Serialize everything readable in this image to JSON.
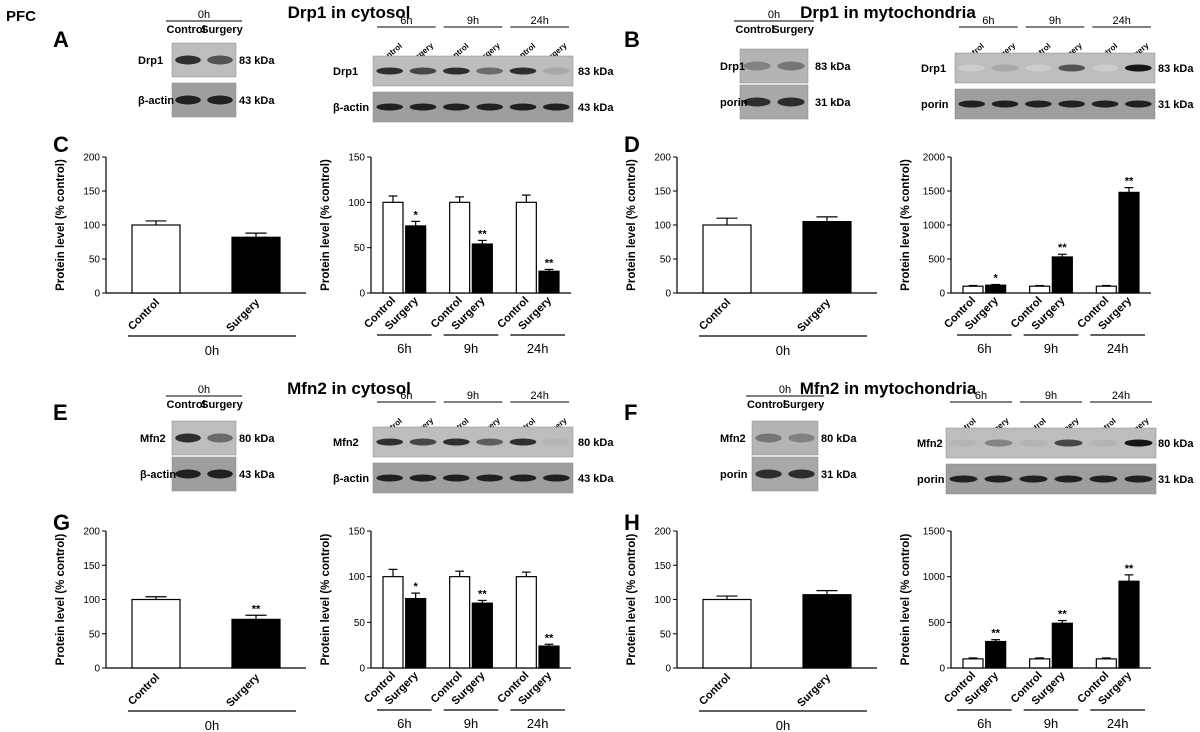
{
  "figure": {
    "corner_label": "PFC",
    "section_titles": [
      "Drp1 in cytosol",
      "Drp1 in mytochondria",
      "Mfn2 in cytosol",
      "Mfn2 in mytochondria"
    ],
    "blot_lane_labels": [
      "Control",
      "Surgery"
    ],
    "time_labels": [
      "0h",
      "6h",
      "9h",
      "24h"
    ]
  },
  "blots": [
    {
      "panel": "A",
      "side": "single",
      "protein": "Drp1",
      "protein_kda": "83 kDa",
      "loading": "β-actin",
      "loading_kda": "43 kDa",
      "time": "0h",
      "tone": "light"
    },
    {
      "panel": "A",
      "side": "time",
      "protein": "Drp1",
      "protein_kda": "83 kDa",
      "loading": "β-actin",
      "loading_kda": "43 kDa",
      "times": [
        "6h",
        "9h",
        "24h"
      ],
      "tone": "light"
    },
    {
      "panel": "B",
      "side": "single",
      "protein": "Drp1",
      "protein_kda": "83 kDa",
      "loading": "porin",
      "loading_kda": "31 kDa",
      "time": "0h",
      "tone": "light"
    },
    {
      "panel": "B",
      "side": "time",
      "protein": "Drp1",
      "protein_kda": "83 kDa",
      "loading": "porin",
      "loading_kda": "31 kDa",
      "times": [
        "6h",
        "9h",
        "24h"
      ],
      "tone": "light"
    },
    {
      "panel": "E",
      "side": "single",
      "protein": "Mfn2",
      "protein_kda": "80 kDa",
      "loading": "β-actin",
      "loading_kda": "43 kDa",
      "time": "0h",
      "tone": "light"
    },
    {
      "panel": "E",
      "side": "time",
      "protein": "Mfn2",
      "protein_kda": "80 kDa",
      "loading": "β-actin",
      "loading_kda": "43 kDa",
      "times": [
        "6h",
        "9h",
        "24h"
      ],
      "tone": "light"
    },
    {
      "panel": "F",
      "side": "single",
      "protein": "Mfn2",
      "protein_kda": "80 kDa",
      "loading": "porin",
      "loading_kda": "31 kDa",
      "time": "0h",
      "tone": "light"
    },
    {
      "panel": "F",
      "side": "time",
      "protein": "Mfn2",
      "protein_kda": "80 kDa",
      "loading": "porin",
      "loading_kda": "31 kDa",
      "times": [
        "6h",
        "9h",
        "24h"
      ],
      "tone": "light"
    }
  ],
  "chart_data": [
    {
      "panel": "C",
      "type": "bar",
      "ylabel": "Protein level (% control)",
      "ylim": [
        0,
        200
      ],
      "yticks": [
        0,
        50,
        100,
        150,
        200
      ],
      "groups": [
        {
          "label": "0h",
          "bars": [
            {
              "name": "Control",
              "value": 100,
              "err": 6,
              "sig": ""
            },
            {
              "name": "Surgery",
              "value": 82,
              "err": 6,
              "sig": ""
            }
          ]
        }
      ]
    },
    {
      "panel": "C",
      "type": "bar",
      "ylabel": "Protein level (% control)",
      "ylim": [
        0,
        150
      ],
      "yticks": [
        0,
        50,
        100,
        150
      ],
      "groups": [
        {
          "label": "6h",
          "bars": [
            {
              "name": "Control",
              "value": 100,
              "err": 7,
              "sig": ""
            },
            {
              "name": "Surgery",
              "value": 74,
              "err": 5,
              "sig": "*"
            }
          ]
        },
        {
          "label": "9h",
          "bars": [
            {
              "name": "Control",
              "value": 100,
              "err": 6,
              "sig": ""
            },
            {
              "name": "Surgery",
              "value": 54,
              "err": 4,
              "sig": "**"
            }
          ]
        },
        {
          "label": "24h",
          "bars": [
            {
              "name": "Control",
              "value": 100,
              "err": 8,
              "sig": ""
            },
            {
              "name": "Surgery",
              "value": 24,
              "err": 2,
              "sig": "**"
            }
          ]
        }
      ]
    },
    {
      "panel": "D",
      "type": "bar",
      "ylabel": "Protein level (% control)",
      "ylim": [
        0,
        200
      ],
      "yticks": [
        0,
        50,
        100,
        150,
        200
      ],
      "groups": [
        {
          "label": "0h",
          "bars": [
            {
              "name": "Control",
              "value": 100,
              "err": 10,
              "sig": ""
            },
            {
              "name": "Surgery",
              "value": 105,
              "err": 7,
              "sig": ""
            }
          ]
        }
      ]
    },
    {
      "panel": "D",
      "type": "bar",
      "ylabel": "Protein level (% control)",
      "ylim": [
        0,
        2000
      ],
      "yticks": [
        0,
        500,
        1000,
        1500,
        2000
      ],
      "groups": [
        {
          "label": "6h",
          "bars": [
            {
              "name": "Control",
              "value": 100,
              "err": 10,
              "sig": ""
            },
            {
              "name": "Surgery",
              "value": 115,
              "err": 10,
              "sig": "*"
            }
          ]
        },
        {
          "label": "9h",
          "bars": [
            {
              "name": "Control",
              "value": 100,
              "err": 10,
              "sig": ""
            },
            {
              "name": "Surgery",
              "value": 530,
              "err": 40,
              "sig": "**"
            }
          ]
        },
        {
          "label": "24h",
          "bars": [
            {
              "name": "Control",
              "value": 100,
              "err": 10,
              "sig": ""
            },
            {
              "name": "Surgery",
              "value": 1480,
              "err": 70,
              "sig": "**"
            }
          ]
        }
      ]
    },
    {
      "panel": "G",
      "type": "bar",
      "ylabel": "Protein level (% control)",
      "ylim": [
        0,
        200
      ],
      "yticks": [
        0,
        50,
        100,
        150,
        200
      ],
      "groups": [
        {
          "label": "0h",
          "bars": [
            {
              "name": "Control",
              "value": 100,
              "err": 4,
              "sig": ""
            },
            {
              "name": "Surgery",
              "value": 71,
              "err": 6,
              "sig": "**"
            }
          ]
        }
      ]
    },
    {
      "panel": "G",
      "type": "bar",
      "ylabel": "Protein level (% control)",
      "ylim": [
        0,
        150
      ],
      "yticks": [
        0,
        50,
        100,
        150
      ],
      "groups": [
        {
          "label": "6h",
          "bars": [
            {
              "name": "Control",
              "value": 100,
              "err": 8,
              "sig": ""
            },
            {
              "name": "Surgery",
              "value": 76,
              "err": 6,
              "sig": "*"
            }
          ]
        },
        {
          "label": "9h",
          "bars": [
            {
              "name": "Control",
              "value": 100,
              "err": 6,
              "sig": ""
            },
            {
              "name": "Surgery",
              "value": 71,
              "err": 3,
              "sig": "**"
            }
          ]
        },
        {
          "label": "24h",
          "bars": [
            {
              "name": "Control",
              "value": 100,
              "err": 5,
              "sig": ""
            },
            {
              "name": "Surgery",
              "value": 24,
              "err": 2,
              "sig": "**"
            }
          ]
        }
      ]
    },
    {
      "panel": "H",
      "type": "bar",
      "ylabel": "Protein level (% control)",
      "ylim": [
        0,
        200
      ],
      "yticks": [
        0,
        50,
        100,
        150,
        200
      ],
      "groups": [
        {
          "label": "0h",
          "bars": [
            {
              "name": "Control",
              "value": 100,
              "err": 5,
              "sig": ""
            },
            {
              "name": "Surgery",
              "value": 107,
              "err": 6,
              "sig": ""
            }
          ]
        }
      ]
    },
    {
      "panel": "H",
      "type": "bar",
      "ylabel": "Protein level (% control)",
      "ylim": [
        0,
        1500
      ],
      "yticks": [
        0,
        500,
        1000,
        1500
      ],
      "groups": [
        {
          "label": "6h",
          "bars": [
            {
              "name": "Control",
              "value": 100,
              "err": 10,
              "sig": ""
            },
            {
              "name": "Surgery",
              "value": 290,
              "err": 20,
              "sig": "**"
            }
          ]
        },
        {
          "label": "9h",
          "bars": [
            {
              "name": "Control",
              "value": 100,
              "err": 10,
              "sig": ""
            },
            {
              "name": "Surgery",
              "value": 490,
              "err": 30,
              "sig": "**"
            }
          ]
        },
        {
          "label": "24h",
          "bars": [
            {
              "name": "Control",
              "value": 100,
              "err": 10,
              "sig": ""
            },
            {
              "name": "Surgery",
              "value": 950,
              "err": 70,
              "sig": "**"
            }
          ]
        }
      ]
    }
  ]
}
